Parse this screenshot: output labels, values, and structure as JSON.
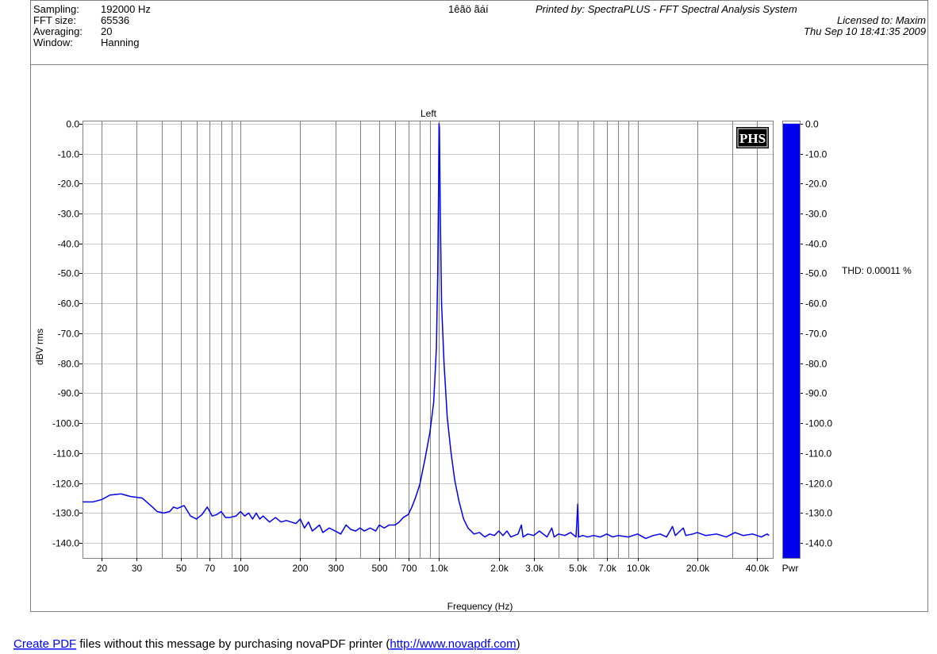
{
  "header": {
    "fields": [
      {
        "label": "Sampling:",
        "value": "192000 Hz"
      },
      {
        "label": "FFT size:",
        "value": "65536"
      },
      {
        "label": "Averaging:",
        "value": "20"
      },
      {
        "label": "Window:",
        "value": "Hanning"
      }
    ],
    "code": "1êãö ãáí",
    "printed_by": "Printed by: SpectraPLUS - FFT Spectral Analysis System",
    "licensed_to": "Licensed to: Maxim",
    "timestamp": "Thu Sep 10 18:41:35 2009"
  },
  "chart_data": {
    "type": "line",
    "title": "Left",
    "x_label": "Frequency (Hz)",
    "y_label": "dBV rms",
    "log_x": true,
    "grid": true,
    "color": "#0000ee",
    "logo": "PHS",
    "annotation": "THD: 0.00011 %",
    "meter": {
      "label": "Pwr",
      "value": 0,
      "color": "#0000ee"
    },
    "xlim": [
      16,
      48000
    ],
    "ylim": [
      -145,
      1
    ],
    "xticks": [
      20,
      30,
      50,
      70,
      100,
      200,
      300,
      500,
      700,
      {
        "value": 1000,
        "label": "1.0k"
      },
      {
        "value": 2000,
        "label": "2.0k"
      },
      {
        "value": 3000,
        "label": "3.0k"
      },
      {
        "value": 5000,
        "label": "5.0k"
      },
      {
        "value": 7000,
        "label": "7.0k"
      },
      {
        "value": 10000,
        "label": "10.0k"
      },
      {
        "value": 20000,
        "label": "20.0k"
      },
      {
        "value": 40000,
        "label": "40.0k"
      }
    ],
    "xminor_ticks": [
      40,
      60,
      80,
      90,
      400,
      600,
      800,
      900,
      4000,
      6000,
      8000,
      9000,
      30000
    ],
    "yticks": [
      {
        "value": 0,
        "label": "0.0"
      },
      {
        "value": -10,
        "label": "-10.0"
      },
      {
        "value": -20,
        "label": "-20.0"
      },
      {
        "value": -30,
        "label": "-30.0"
      },
      {
        "value": -40,
        "label": "-40.0"
      },
      {
        "value": -50,
        "label": "-50.0"
      },
      {
        "value": -60,
        "label": "-60.0"
      },
      {
        "value": -70,
        "label": "-70.0"
      },
      {
        "value": -80,
        "label": "-80.0"
      },
      {
        "value": -90,
        "label": "-90.0"
      },
      {
        "value": -100,
        "label": "-100.0"
      },
      {
        "value": -110,
        "label": "-110.0"
      },
      {
        "value": -120,
        "label": "-120.0"
      },
      {
        "value": -130,
        "label": "-130.0"
      },
      {
        "value": -140,
        "label": "-140.0"
      }
    ],
    "x": [
      16,
      18,
      20,
      22,
      25,
      28,
      32,
      36,
      38,
      41,
      44,
      46,
      48,
      52,
      56,
      60,
      64,
      68,
      72,
      76,
      80,
      84,
      88,
      95,
      100,
      105,
      110,
      115,
      120,
      125,
      130,
      140,
      150,
      160,
      170,
      180,
      190,
      200,
      210,
      220,
      230,
      240,
      250,
      260,
      280,
      300,
      320,
      340,
      360,
      380,
      400,
      420,
      450,
      480,
      500,
      530,
      560,
      600,
      630,
      660,
      700,
      730,
      760,
      800,
      850,
      900,
      940,
      970,
      985,
      995,
      1000,
      1005,
      1015,
      1030,
      1060,
      1100,
      1150,
      1200,
      1260,
      1330,
      1400,
      1500,
      1600,
      1700,
      1800,
      1900,
      2000,
      2100,
      2200,
      2300,
      2500,
      2600,
      2650,
      2800,
      3000,
      3200,
      3500,
      3700,
      3800,
      4000,
      4300,
      4600,
      4900,
      5000,
      5050,
      5300,
      5600,
      6000,
      6500,
      7000,
      7500,
      8000,
      9000,
      10000,
      11000,
      12000,
      13000,
      14000,
      15000,
      15500,
      17000,
      17500,
      19000,
      20000,
      22000,
      25000,
      28000,
      31000,
      34000,
      38000,
      42000,
      45000,
      46000
    ],
    "values": [
      -126.3,
      -126.3,
      -125.5,
      -124,
      -123.6,
      -124.5,
      -125,
      -128,
      -129.5,
      -130,
      -129.5,
      -128,
      -128.5,
      -127.5,
      -131,
      -132,
      -130.5,
      -128,
      -131,
      -130.5,
      -129.5,
      -131.5,
      -131.5,
      -131,
      -129.5,
      -131,
      -130,
      -132,
      -130,
      -132,
      -131,
      -133,
      -131.5,
      -133,
      -132.5,
      -133,
      -133.5,
      -132,
      -135,
      -133,
      -136,
      -135,
      -134,
      -136.5,
      -135,
      -136,
      -137,
      -134,
      -135.5,
      -136,
      -135,
      -136,
      -135,
      -136,
      -134,
      -135,
      -134,
      -134,
      -133,
      -131.5,
      -130.5,
      -128,
      -125,
      -120.5,
      -112,
      -103,
      -93,
      -75,
      -50,
      -20,
      0,
      -1.5,
      -30,
      -60,
      -80,
      -98,
      -110,
      -119,
      -126,
      -132,
      -135,
      -137,
      -136.5,
      -138,
      -137,
      -137.5,
      -136,
      -137.5,
      -136,
      -138,
      -137,
      -134,
      -138,
      -137,
      -137.5,
      -136,
      -138,
      -135,
      -138,
      -137,
      -137.5,
      -136.5,
      -138,
      -127,
      -138,
      -137.5,
      -138,
      -137.5,
      -138,
      -137,
      -138,
      -137.5,
      -138,
      -137,
      -138.5,
      -137.5,
      -137,
      -138,
      -134.5,
      -137.5,
      -135,
      -137.5,
      -137,
      -136.5,
      -137.5,
      -137,
      -138,
      -136.5,
      -137.5,
      -137,
      -138,
      -137,
      -137.5
    ]
  },
  "footer": {
    "link_text": "Create PDF",
    "text": " files without this message by purchasing novaPDF printer (",
    "url_text": "http://www.novapdf.com",
    "end": ")"
  }
}
